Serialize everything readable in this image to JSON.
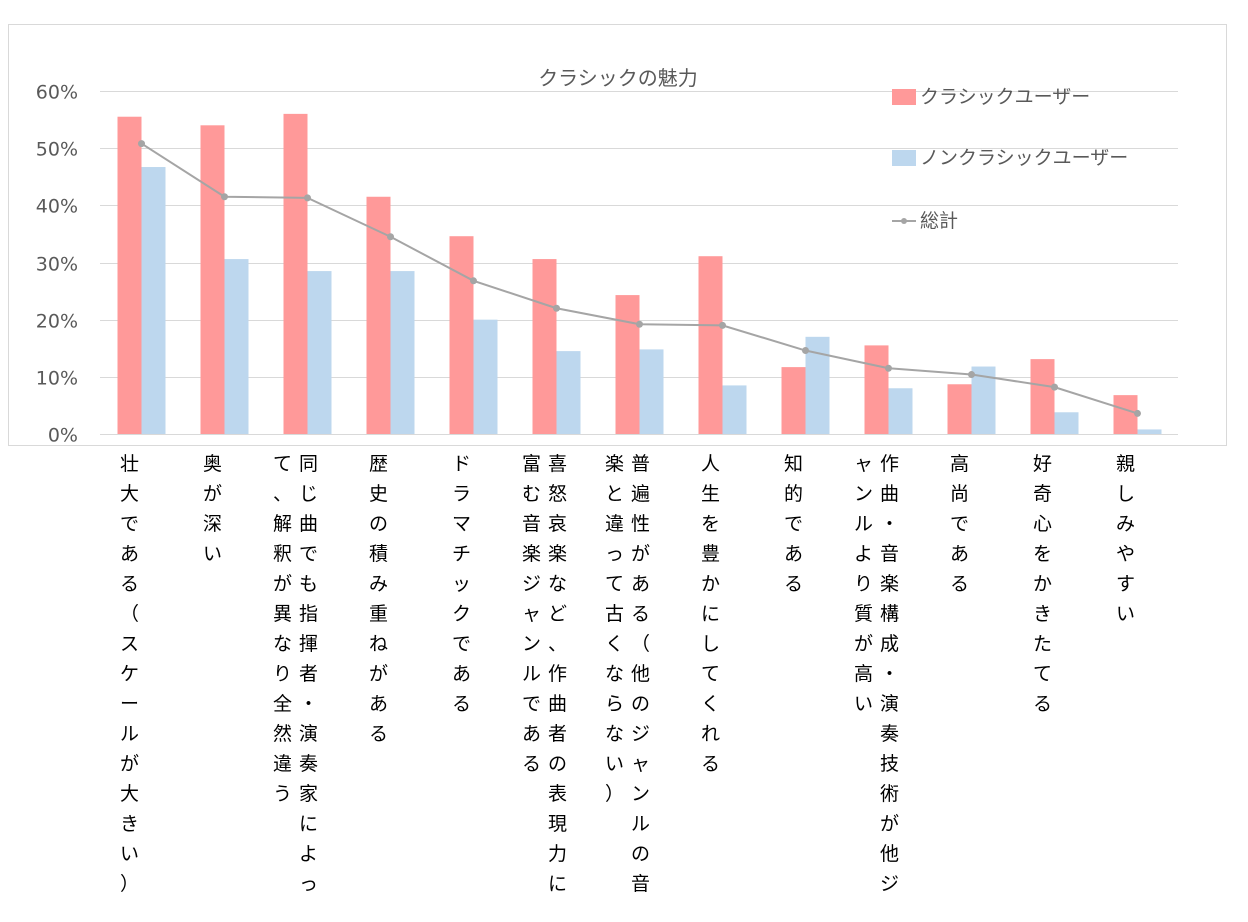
{
  "chart_data": {
    "type": "bar",
    "title": "クラシックの魅力",
    "xlabel": "",
    "ylabel": "",
    "ylim": [
      0,
      0.6
    ],
    "yticks": [
      0,
      0.1,
      0.2,
      0.3,
      0.4,
      0.5,
      0.6
    ],
    "ytick_labels": [
      "0%",
      "10%",
      "20%",
      "30%",
      "40%",
      "50%",
      "60%"
    ],
    "grid": true,
    "legend_position": "top-right",
    "categories": [
      "壮大である（スケールが大きい）",
      "奥が深い",
      "同じ曲でも指揮者・演奏家によって、解釈が異なり全然違う",
      "歴史の積み重ねがある",
      "ドラマチックである",
      "喜怒哀楽など、作曲者の表現力に富む音楽ジャンルである",
      "普遍性がある（他のジャンルの音楽と違って古くならない）",
      "人生を豊かにしてくれる",
      "知的である",
      "作曲・音楽構成・演奏技術が他ジャンルより質が高い",
      "高尚である",
      "好奇心をかきたてる",
      "親しみやすい"
    ],
    "series": [
      {
        "name": "クラシックユーザー",
        "kind": "bar",
        "color": "#ff9999",
        "values": [
          0.555,
          0.54,
          0.56,
          0.415,
          0.346,
          0.306,
          0.243,
          0.311,
          0.117,
          0.155,
          0.087,
          0.131,
          0.068
        ]
      },
      {
        "name": "ノンクラシックユーザー",
        "kind": "bar",
        "color": "#bdd7ee",
        "values": [
          0.467,
          0.306,
          0.285,
          0.285,
          0.2,
          0.145,
          0.148,
          0.085,
          0.17,
          0.08,
          0.118,
          0.038,
          0.008
        ]
      },
      {
        "name": "総計",
        "kind": "line",
        "color": "#a5a5a5",
        "values": [
          0.508,
          0.415,
          0.413,
          0.345,
          0.268,
          0.22,
          0.192,
          0.19,
          0.146,
          0.115,
          0.104,
          0.082,
          0.036
        ]
      }
    ]
  }
}
